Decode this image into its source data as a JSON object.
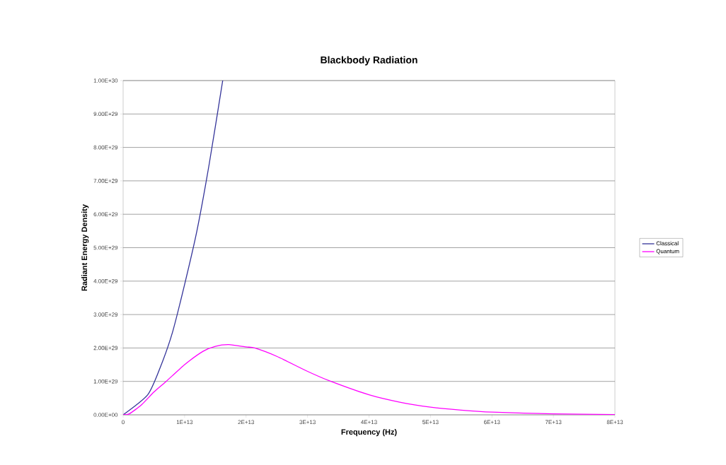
{
  "chart_data": {
    "type": "line",
    "title": "Blackbody Radiation",
    "xlabel": "Frequency (Hz)",
    "ylabel": "Radiant Energy Density",
    "xlim": [
      0,
      80000000000000.0
    ],
    "ylim": [
      0,
      1e+30
    ],
    "xticks": [
      0,
      {
        "value": 10000000000000.0,
        "label": "1E+13"
      },
      {
        "value": 20000000000000.0,
        "label": "2E+13"
      },
      {
        "value": 30000000000000.0,
        "label": "3E+13"
      },
      {
        "value": 40000000000000.0,
        "label": "4E+13"
      },
      {
        "value": 50000000000000.0,
        "label": "5E+13"
      },
      {
        "value": 60000000000000.0,
        "label": "6E+13"
      },
      {
        "value": 70000000000000.0,
        "label": "7E+13"
      },
      {
        "value": 80000000000000.0,
        "label": "8E+13"
      }
    ],
    "yticks": [
      {
        "value": 0,
        "label": "0.00E+00"
      },
      {
        "value": 1e+29,
        "label": "1.00E+29"
      },
      {
        "value": 2e+29,
        "label": "2.00E+29"
      },
      {
        "value": 3e+29,
        "label": "3.00E+29"
      },
      {
        "value": 4e+29,
        "label": "4.00E+29"
      },
      {
        "value": 5e+29,
        "label": "5.00E+29"
      },
      {
        "value": 6e+29,
        "label": "6.00E+29"
      },
      {
        "value": 7e+29,
        "label": "7.00E+29"
      },
      {
        "value": 8e+29,
        "label": "8.00E+29"
      },
      {
        "value": 9e+29,
        "label": "9.00E+29"
      },
      {
        "value": 1e+30,
        "label": "1.00E+30"
      }
    ],
    "grid": "y",
    "legend": "right",
    "line_style": "solid",
    "series": [
      {
        "name": "Classical",
        "color": "#333399",
        "x": [
          0,
          2000000000000.0,
          4000000000000.0,
          6000000000000.0,
          8000000000000.0,
          10000000000000.0,
          12000000000000.0,
          14000000000000.0,
          16200000000000.0
        ],
        "values": [
          0,
          null,
          6e+28,
          1.4e+29,
          2.45e+29,
          3.9e+29,
          5.5e+29,
          7.5e+29,
          1e+30
        ]
      },
      {
        "name": "Quantum",
        "color": "#ff00ff",
        "x": [
          0,
          1000000000000.0,
          3000000000000.0,
          5000000000000.0,
          7000000000000.0,
          10000000000000.0,
          13000000000000.0,
          15000000000000.0,
          17200000000000.0,
          20000000000000.0,
          21400000000000.0,
          25000000000000.0,
          30000000000000.0,
          33800000000000.0,
          40000000000000.0,
          45000000000000.0,
          50000000000000.0,
          55000000000000.0,
          60000000000000.0,
          70000000000000.0,
          80000000000000.0
        ],
        "values": [
          0,
          3e+27,
          3e+28,
          6.8e+28,
          1e+29,
          1.5e+29,
          1.9e+29,
          2.05e+29,
          2.1e+29,
          2.03e+29,
          2e+29,
          1.75e+29,
          1.3e+29,
          1e+29,
          6e+28,
          3.8e+28,
          2.3e+28,
          1.4e+28,
          8e+27,
          3e+27,
          1e+27
        ]
      }
    ]
  }
}
